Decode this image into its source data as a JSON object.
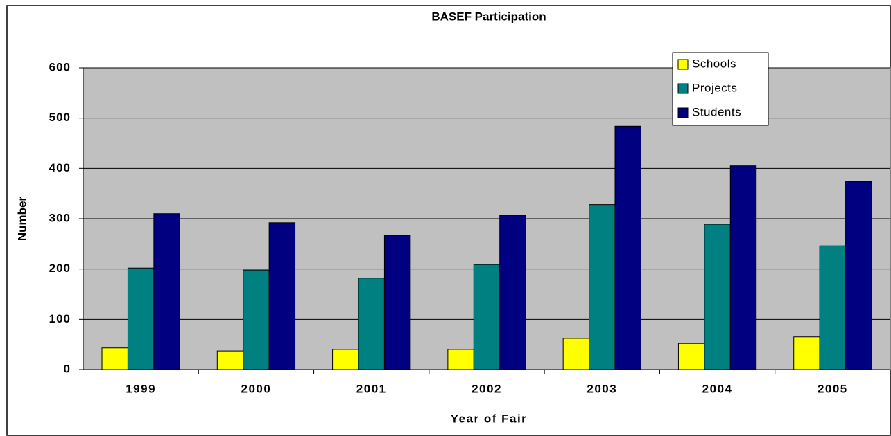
{
  "chart_data": {
    "type": "bar",
    "title": "BASEF Participation",
    "x_label": "Year of Fair",
    "y_label": "Number",
    "categories": [
      "1999",
      "2000",
      "2001",
      "2002",
      "2003",
      "2004",
      "2005"
    ],
    "series": [
      {
        "name": "Schools",
        "color": "#ffff00",
        "values": [
          43,
          37,
          40,
          40,
          62,
          52,
          65
        ]
      },
      {
        "name": "Projects",
        "color": "#008080",
        "values": [
          202,
          198,
          182,
          209,
          328,
          289,
          246
        ]
      },
      {
        "name": "Students",
        "color": "#000080",
        "values": [
          310,
          292,
          267,
          307,
          484,
          405,
          374
        ]
      }
    ],
    "ylim": [
      0,
      600
    ],
    "yticks": [
      0,
      100,
      200,
      300,
      400,
      500,
      600
    ],
    "grid": true,
    "legend": "top-right"
  }
}
